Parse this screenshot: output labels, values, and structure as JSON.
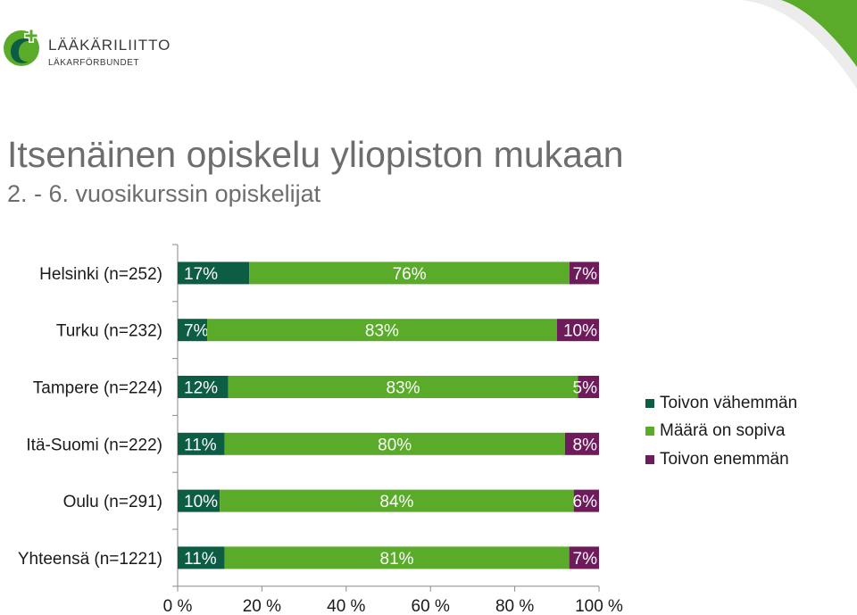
{
  "logo": {
    "line1": "LÄÄKÄRILIITTO",
    "line2": "LÄKARFÖRBUNDET"
  },
  "title": "Itsenäinen opiskelu yliopiston mukaan",
  "subtitle": "2. - 6. vuosikurssin opiskelijat",
  "colors": {
    "brand_green": "#5aab2a",
    "dark_green": "#0d5d44",
    "purple": "#6d1b5b",
    "text_gray": "#6d6d6d"
  },
  "chart_data": {
    "type": "bar",
    "orientation": "horizontal",
    "stacked": true,
    "percent_stacked": true,
    "categories": [
      "Helsinki (n=252)",
      "Turku (n=232)",
      "Tampere (n=224)",
      "Itä-Suomi (n=222)",
      "Oulu (n=291)",
      "Yhteensä (n=1221)"
    ],
    "series": [
      {
        "name": "Toivon vähemmän",
        "color": "#0d5d44",
        "values": [
          17,
          7,
          12,
          11,
          10,
          11
        ]
      },
      {
        "name": "Määrä on sopiva",
        "color": "#5aab2a",
        "values": [
          76,
          83,
          83,
          80,
          84,
          81
        ]
      },
      {
        "name": "Toivon enemmän",
        "color": "#6d1b5b",
        "values": [
          7,
          10,
          5,
          8,
          6,
          7
        ]
      }
    ],
    "data_labels": true,
    "label_suffix": "%",
    "x_ticks": [
      "0 %",
      "20 %",
      "40 %",
      "60 %",
      "80 %",
      "100 %"
    ],
    "xlim": [
      0,
      100
    ],
    "grid": false,
    "legend_position": "right"
  }
}
